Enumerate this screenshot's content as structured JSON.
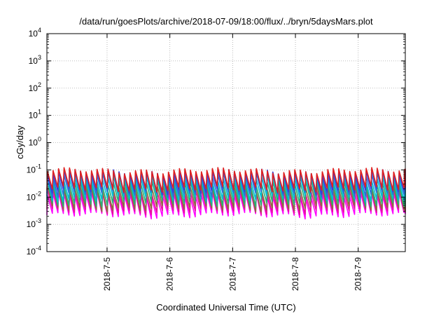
{
  "chart_data": {
    "type": "line",
    "title": "/data/run/goesPlots/archive/2018-07-09/18:00/flux/../bryn/5daysMars.plot",
    "xlabel": "Coordinated Universal Time (UTC)",
    "ylabel": "cGy/day",
    "y_scale": "log",
    "ylim": [
      0.0001,
      10000
    ],
    "y_ticks": [
      {
        "base": "10",
        "exp": "-4",
        "value": 0.0001
      },
      {
        "base": "10",
        "exp": "-3",
        "value": 0.001
      },
      {
        "base": "10",
        "exp": "-2",
        "value": 0.01
      },
      {
        "base": "10",
        "exp": "-1",
        "value": 0.1
      },
      {
        "base": "10",
        "exp": "0",
        "value": 1
      },
      {
        "base": "10",
        "exp": "1",
        "value": 10
      },
      {
        "base": "10",
        "exp": "2",
        "value": 100
      },
      {
        "base": "10",
        "exp": "3",
        "value": 1000
      },
      {
        "base": "10",
        "exp": "4",
        "value": 10000
      }
    ],
    "xlim": [
      "2018-07-04T01:00",
      "2018-07-09T18:00"
    ],
    "x_ticks": [
      "2018-7-5",
      "2018-7-6",
      "2018-7-7",
      "2018-7-8",
      "2018-7-9"
    ],
    "grid": true,
    "sawtooth_period_hours": 2.1,
    "series": [
      {
        "color": "#ff00ff",
        "peak": 0.012,
        "trough": 0.0022
      },
      {
        "color": "#e8129a",
        "peak": 0.016,
        "trough": 0.003
      },
      {
        "color": "#8a6f3c",
        "peak": 0.022,
        "trough": 0.004
      },
      {
        "color": "#26b07a",
        "peak": 0.034,
        "trough": 0.006
      },
      {
        "color": "#00bcd4",
        "peak": 0.05,
        "trough": 0.009
      },
      {
        "color": "#2a6fd6",
        "peak": 0.07,
        "trough": 0.013
      },
      {
        "color": "#3b3bd9",
        "peak": 0.085,
        "trough": 0.017
      },
      {
        "color": "#e02020",
        "peak": 0.095,
        "trough": 0.02
      }
    ]
  }
}
